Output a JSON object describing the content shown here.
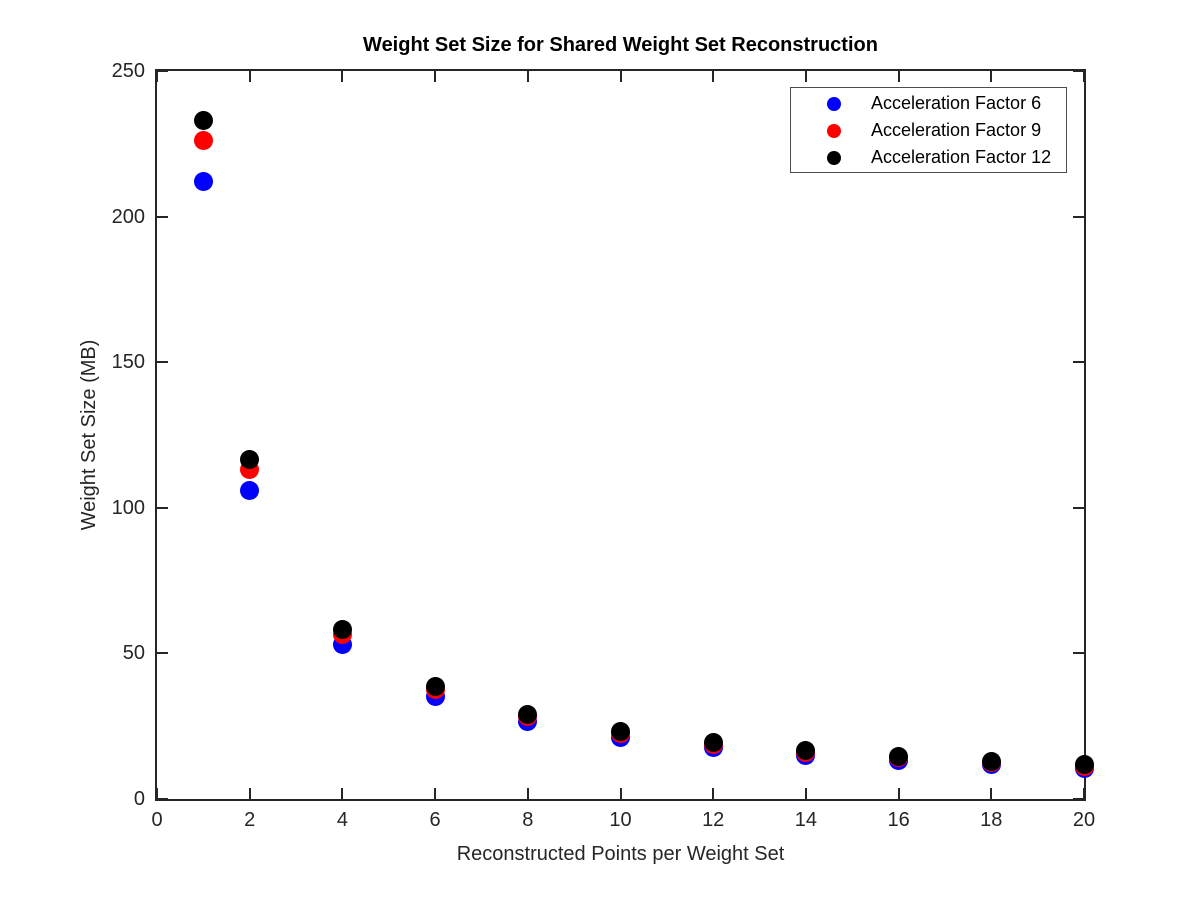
{
  "figure": {
    "background": "#ffffff"
  },
  "chart_data": {
    "type": "scatter",
    "title": "Weight Set Size for Shared Weight Set Reconstruction",
    "xlabel": "Reconstructed Points per Weight Set",
    "ylabel": "Weight Set Size (MB)",
    "xlim": [
      0,
      20
    ],
    "ylim": [
      0,
      250
    ],
    "x_ticks": [
      0,
      2,
      4,
      6,
      8,
      10,
      12,
      14,
      16,
      18,
      20
    ],
    "y_ticks": [
      0,
      50,
      100,
      150,
      200,
      250
    ],
    "grid": false,
    "marker": "filled-circle",
    "legend_position": "top-right",
    "x": [
      1,
      2,
      4,
      6,
      8,
      10,
      12,
      14,
      16,
      18,
      20
    ],
    "series": [
      {
        "name": "Acceleration Factor 6",
        "color": "#0000ff",
        "values": [
          212,
          106,
          53,
          35.3,
          26.5,
          21.2,
          17.7,
          15.1,
          13.3,
          11.8,
          10.6
        ]
      },
      {
        "name": "Acceleration Factor 9",
        "color": "#ff0000",
        "values": [
          226,
          113,
          56.5,
          37.7,
          28.3,
          22.6,
          18.8,
          16.1,
          14.1,
          12.6,
          11.3
        ]
      },
      {
        "name": "Acceleration Factor 12",
        "color": "#000000",
        "values": [
          233,
          116.5,
          58.3,
          38.8,
          29.1,
          23.3,
          19.4,
          16.6,
          14.6,
          12.9,
          11.7
        ]
      }
    ]
  },
  "colors": {
    "axis": "#262626",
    "title_text": "#000000",
    "legend_border": "#4d4d4d",
    "background": "#ffffff"
  }
}
